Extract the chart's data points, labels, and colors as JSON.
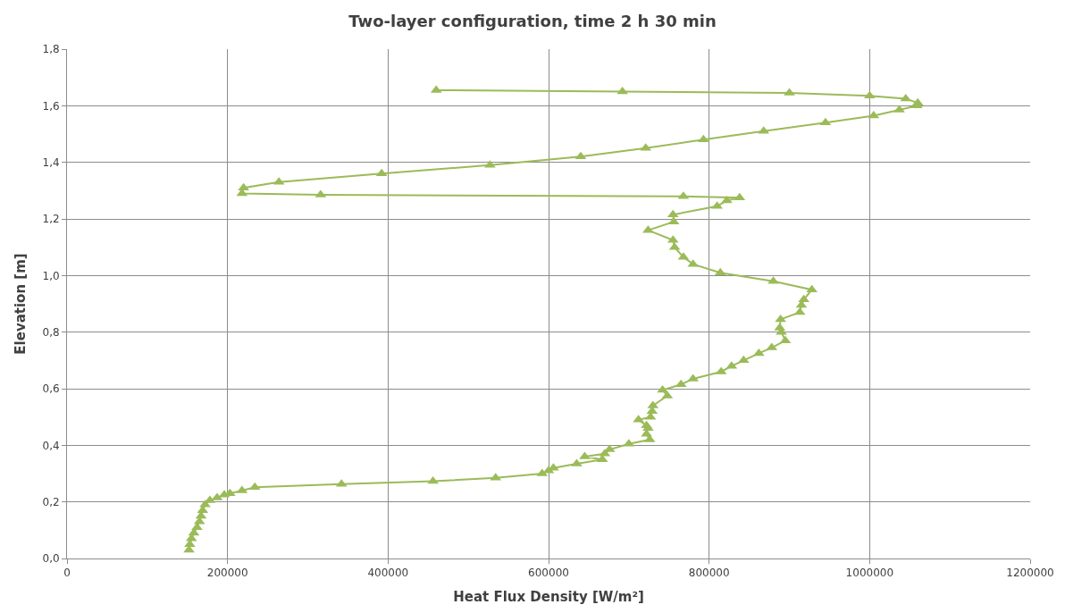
{
  "chart_data": {
    "type": "line",
    "title": "Two-layer configuration, time 2 h 30 min",
    "xlabel": "Heat Flux Density [W/m²]",
    "ylabel": "Elevation [m]",
    "series": [
      {
        "color": "#9bbb59",
        "x": [
          152000,
          153000,
          155000,
          158000,
          162000,
          165000,
          167000,
          169000,
          172000,
          178000,
          187000,
          196000,
          203000,
          218000,
          234000,
          342000,
          456000,
          534000,
          592000,
          600000,
          606000,
          635000,
          667000,
          645000,
          670000,
          676000,
          700000,
          726000,
          722000,
          724000,
          722000,
          712000,
          727000,
          729000,
          730000,
          748000,
          742000,
          765000,
          780000,
          815000,
          828000,
          843000,
          862000,
          878000,
          895000,
          890000,
          888000,
          889000,
          913000,
          915000,
          918000,
          928000,
          880000,
          814000,
          780000,
          768000,
          757000,
          755000,
          724000,
          756000,
          755000,
          810000,
          822000,
          838000,
          768000,
          316000,
          218000,
          220000,
          264000,
          392000,
          527000,
          640000,
          721000,
          793000,
          868000,
          945000,
          1005000,
          1037000,
          1059000,
          1060000,
          1045000,
          1000000,
          900000,
          692000,
          460000
        ],
        "values": [
          0.03,
          0.05,
          0.07,
          0.09,
          0.11,
          0.13,
          0.15,
          0.17,
          0.19,
          0.205,
          0.215,
          0.225,
          0.23,
          0.24,
          0.252,
          0.263,
          0.273,
          0.285,
          0.3,
          0.31,
          0.32,
          0.335,
          0.35,
          0.36,
          0.37,
          0.385,
          0.405,
          0.42,
          0.44,
          0.46,
          0.47,
          0.49,
          0.5,
          0.52,
          0.54,
          0.575,
          0.595,
          0.615,
          0.635,
          0.66,
          0.68,
          0.7,
          0.725,
          0.745,
          0.77,
          0.8,
          0.815,
          0.845,
          0.87,
          0.895,
          0.915,
          0.95,
          0.98,
          1.01,
          1.04,
          1.065,
          1.1,
          1.125,
          1.16,
          1.19,
          1.215,
          1.245,
          1.265,
          1.275,
          1.28,
          1.285,
          1.29,
          1.31,
          1.33,
          1.36,
          1.39,
          1.42,
          1.45,
          1.48,
          1.51,
          1.54,
          1.565,
          1.585,
          1.6,
          1.61,
          1.625,
          1.635,
          1.645,
          1.65,
          1.655
        ]
      }
    ],
    "xlim": [
      0,
      1200000
    ],
    "xticks": [
      0,
      200000,
      400000,
      600000,
      800000,
      1000000,
      1200000
    ],
    "ylim": [
      0,
      1.8
    ],
    "yticks": [
      {
        "value": 0,
        "label": "0,0"
      },
      {
        "value": 0.2,
        "label": "0,2"
      },
      {
        "value": 0.4,
        "label": "0,4"
      },
      {
        "value": 0.6,
        "label": "0,6"
      },
      {
        "value": 0.8,
        "label": "0,8"
      },
      {
        "value": 1.0,
        "label": "1,0"
      },
      {
        "value": 1.2,
        "label": "1,2"
      },
      {
        "value": 1.4,
        "label": "1,4"
      },
      {
        "value": 1.6,
        "label": "1,6"
      },
      {
        "value": 1.8,
        "label": "1,8"
      }
    ],
    "grid": true,
    "marker": "triangle",
    "line_style": "solid"
  }
}
